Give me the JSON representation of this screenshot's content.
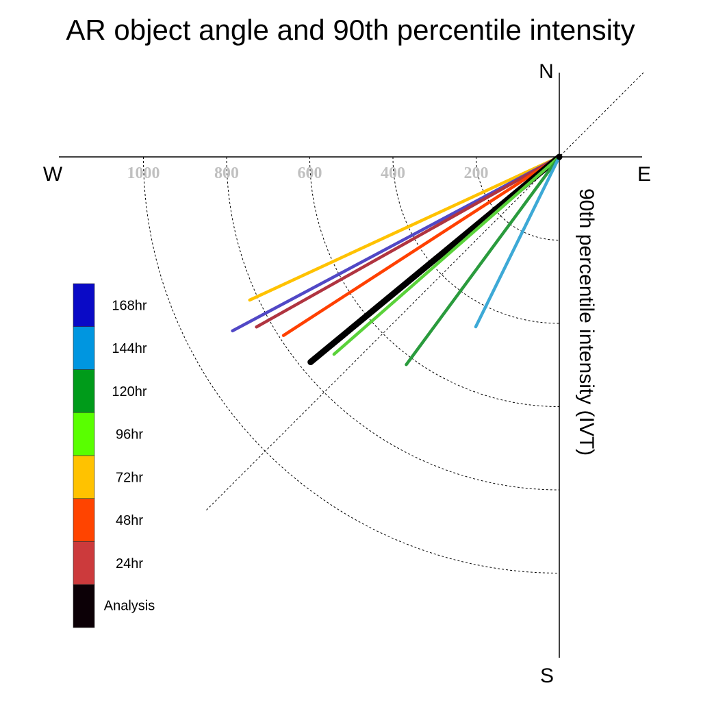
{
  "chart_data": {
    "type": "polar-vector",
    "title": "AR object angle and 90th percentile intensity",
    "radial_label": "90th percentile intensity (IVT)",
    "compass": {
      "north": "N",
      "south": "S",
      "east": "E",
      "west": "W"
    },
    "radial_ticks": [
      200,
      400,
      600,
      800,
      1000
    ],
    "radial_max": 1200,
    "angle_convention": "degrees clockwise from west, toward south",
    "series": [
      {
        "name": "72hr",
        "color": "#ffc200",
        "angle": 24.8,
        "intensity": 820
      },
      {
        "name": "168hr",
        "color": "#5148c6",
        "angle": 28.0,
        "intensity": 890
      },
      {
        "name": "24hr",
        "color": "#b03440",
        "angle": 29.3,
        "intensity": 835
      },
      {
        "name": "48hr",
        "color": "#ff4000",
        "angle": 32.9,
        "intensity": 790
      },
      {
        "name": "Analysis",
        "color": "#000000",
        "angle": 39.5,
        "intensity": 775
      },
      {
        "name": "96hr",
        "color": "#5ad23a",
        "angle": 41.2,
        "intensity": 720
      },
      {
        "name": "120hr",
        "color": "#2a9b3d",
        "angle": 53.6,
        "intensity": 620
      },
      {
        "name": "144hr",
        "color": "#3da9d6",
        "angle": 63.8,
        "intensity": 455
      }
    ],
    "legend": [
      {
        "label": "168hr",
        "color": "#0a0ac6"
      },
      {
        "label": "144hr",
        "color": "#0096e0"
      },
      {
        "label": "120hr",
        "color": "#009b1a"
      },
      {
        "label": "96hr",
        "color": "#59ff00"
      },
      {
        "label": "72hr",
        "color": "#ffc200"
      },
      {
        "label": "48hr",
        "color": "#ff4400"
      },
      {
        "label": "24hr",
        "color": "#cc3a3c"
      },
      {
        "label": "Analysis",
        "color": "#0c0006"
      }
    ],
    "grid": true,
    "legend_position": "left"
  }
}
